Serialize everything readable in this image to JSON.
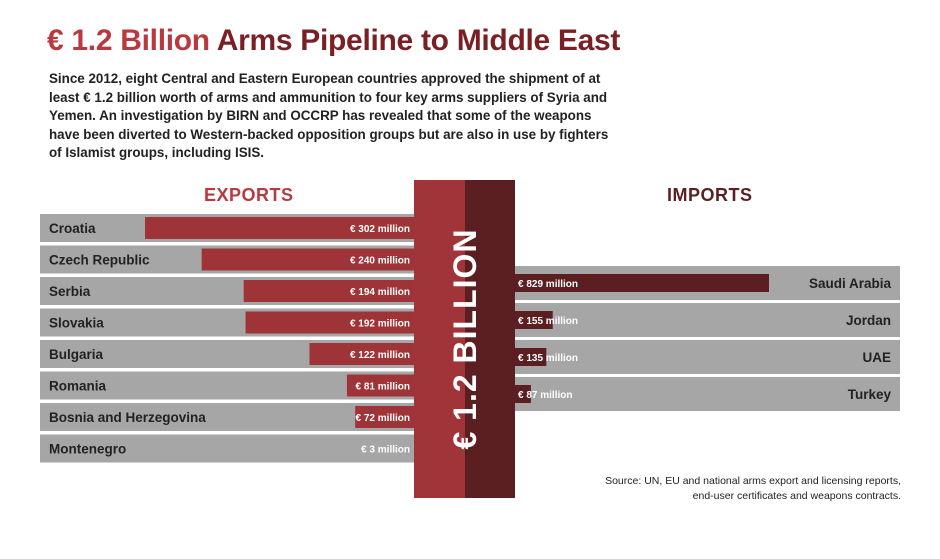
{
  "title": {
    "highlight": "€ 1.2 Billion",
    "rest": "Arms Pipeline to Middle East"
  },
  "intro": "Since 2012, eight Central and Eastern European countries approved the shipment of at least € 1.2 billion worth of arms and ammunition to four key arms suppliers of Syria and Yemen. An investigation by BIRN and OCCRP has revealed that some of the weapons have been diverted to Western-backed opposition groups but are also in use by fighters of Islamist groups, including ISIS.",
  "source": {
    "line1": "Source: UN, EU and national arms export and licensing reports,",
    "line2": "end-user certificates and weapons contracts."
  },
  "colors": {
    "exportBar": "#9e3437",
    "importBar": "#5b1f22",
    "rowBg": "#a6a6a6",
    "centerLeft": "#a03438",
    "centerRight": "#5b1f22"
  },
  "chart_data": [
    {
      "type": "bar",
      "title": "EXPORTS",
      "unit": "€ million",
      "categories": [
        "Croatia",
        "Czech Republic",
        "Serbia",
        "Slovakia",
        "Bulgaria",
        "Romania",
        "Bosnia and Herzegovina",
        "Montenegro"
      ],
      "values": [
        302,
        240,
        194,
        192,
        122,
        81,
        72,
        3
      ],
      "labels": [
        "€ 302 million",
        "€ 240 million",
        "€ 194 million",
        "€ 192 million",
        "€ 122 million",
        "€ 81 million",
        "€ 72 million",
        "€ 3 million"
      ]
    },
    {
      "type": "bar",
      "title": "IMPORTS",
      "unit": "€ million",
      "categories": [
        "Saudi Arabia",
        "Jordan",
        "UAE",
        "Turkey"
      ],
      "values": [
        829,
        155,
        135,
        87
      ],
      "labels": [
        "€ 829 million",
        "€ 155 million",
        "€ 135 million",
        "€ 87 million"
      ]
    }
  ],
  "center_label": "€ 1.2 BILLION"
}
